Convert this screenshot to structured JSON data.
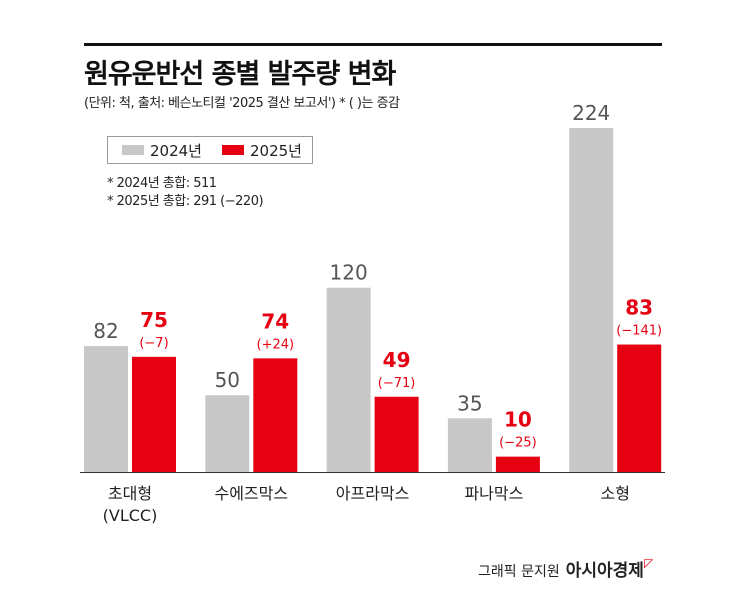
{
  "title": "원유운반선 종별 발주량 변화",
  "subtitle": "(단위: 척, 출처: 베슨노티컬 '2025 결산 보고서')  * ( )는 증감",
  "notes": [
    "* 2024년 총합: 511",
    "* 2025년 총합: 291 (−220)"
  ],
  "credit": "그래픽 문지원",
  "brand": "아시아경제",
  "chart_data": {
    "type": "bar",
    "categories": [
      "초대형\n(VLCC)",
      "수에즈막스",
      "아프라막스",
      "파나막스",
      "소형"
    ],
    "series": [
      {
        "name": "2024년",
        "color": "#c8c8c8",
        "values": [
          82,
          50,
          120,
          35,
          224
        ],
        "labels": [
          "82",
          "50",
          "120",
          "35",
          "224"
        ]
      },
      {
        "name": "2025년",
        "color": "#e60012",
        "values": [
          75,
          74,
          49,
          10,
          83
        ],
        "labels": [
          "75",
          "74",
          "49",
          "10",
          "83"
        ],
        "changes": [
          "(−7)",
          "(+24)",
          "(−71)",
          "(−25)",
          "(−141)"
        ]
      }
    ],
    "ylim": [
      0,
      224
    ]
  }
}
